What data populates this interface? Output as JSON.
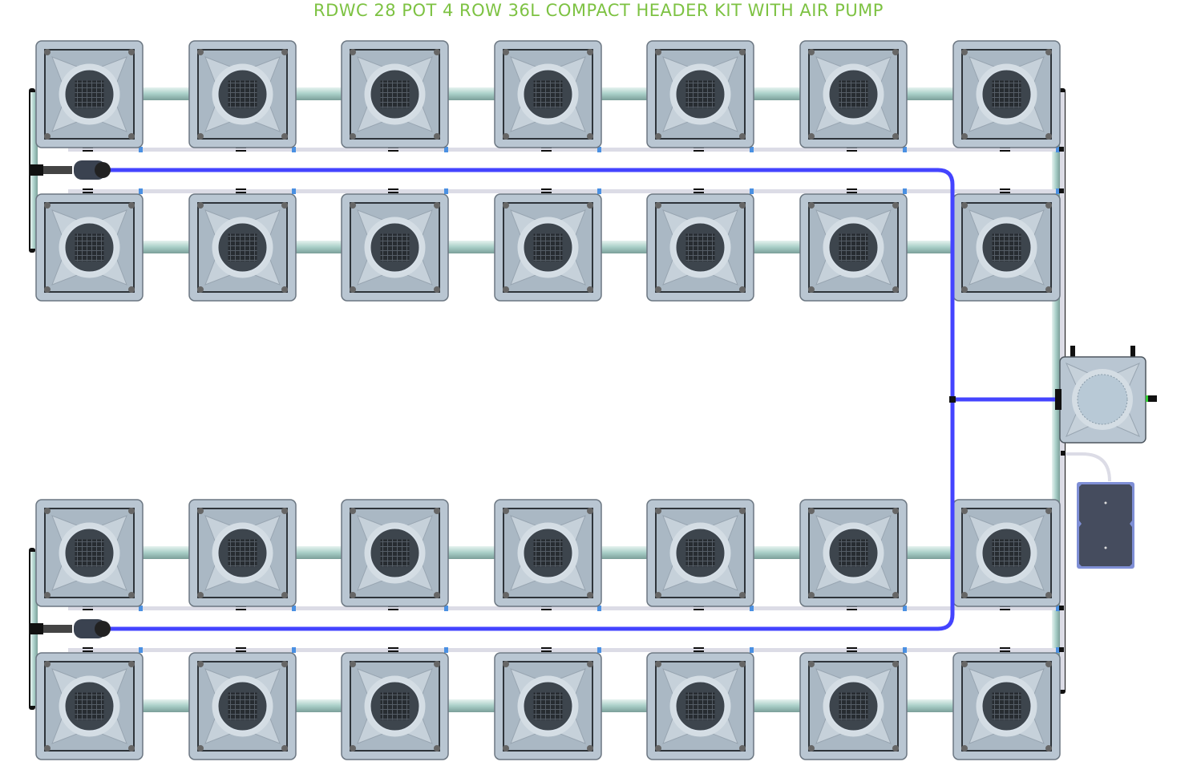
{
  "title": "RDWC 28 POT 4 ROW 36L COMPACT HEADER KIT WITH AIR PUMP",
  "layout": {
    "rows": 4,
    "pots_per_row": 7,
    "pot_count": 28
  },
  "colors": {
    "title": "#7dc242",
    "air_line": "#4444ff",
    "pot_body": "#b9c6d2",
    "pot_net": "#3d454d",
    "water_pipe": "#a9cfc8",
    "return_line": "#dcdce6",
    "air_pump": "#454c5e",
    "air_pump_border": "#7f8fd6"
  },
  "components": {
    "pot": "pot",
    "header_tank": "header-tank",
    "air_pump": "air-pump",
    "air_stone": "air-stone"
  }
}
